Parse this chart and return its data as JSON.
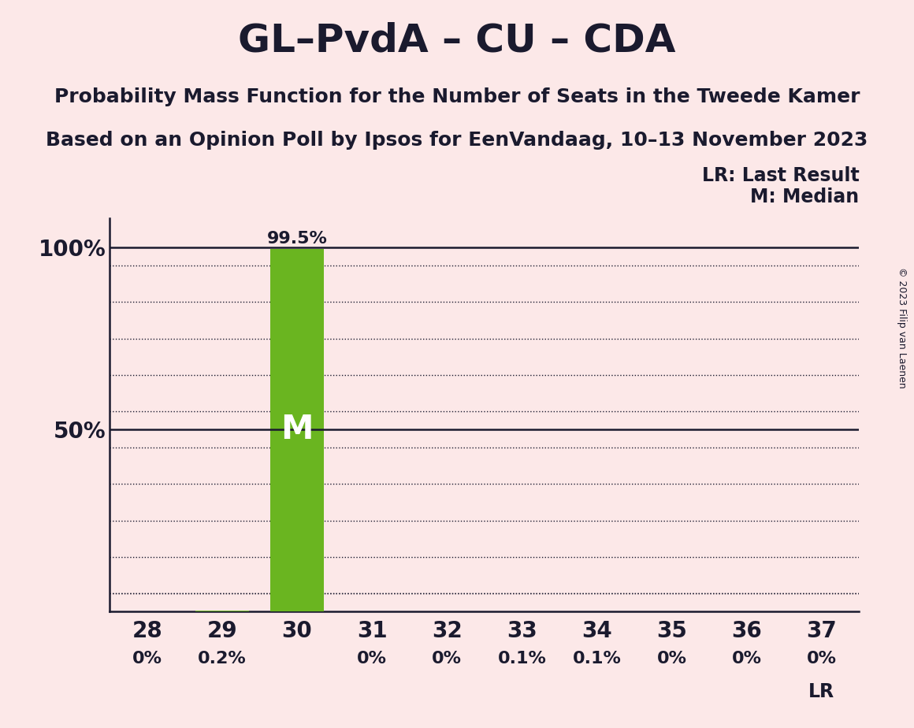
{
  "title": "GL–PvdA – CU – CDA",
  "subtitle1": "Probability Mass Function for the Number of Seats in the Tweede Kamer",
  "subtitle2": "Based on an Opinion Poll by Ipsos for EenVandaag, 10–13 November 2023",
  "copyright_text": "© 2023 Filip van Laenen",
  "legend_lr": "LR: Last Result",
  "legend_m": "M: Median",
  "x_labels": [
    28,
    29,
    30,
    31,
    32,
    33,
    34,
    35,
    36,
    37
  ],
  "bar_values": [
    0.0,
    0.002,
    0.995,
    0.0,
    0.0,
    0.001,
    0.001,
    0.0,
    0.0,
    0.0
  ],
  "bar_labels": [
    "0%",
    "0.2%",
    "99.5%",
    "0%",
    "0%",
    "0.1%",
    "0.1%",
    "0%",
    "0%",
    "0%"
  ],
  "median_seat": 30,
  "lr_seat": 37,
  "bar_color": "#6ab520",
  "background_color": "#fce8e8",
  "text_color": "#1a1a2e",
  "median_label_color": "#ffffff",
  "title_fontsize": 36,
  "subtitle_fontsize": 18,
  "axis_fontsize": 20,
  "bar_label_fontsize": 16,
  "legend_fontsize": 17,
  "copyright_fontsize": 9
}
